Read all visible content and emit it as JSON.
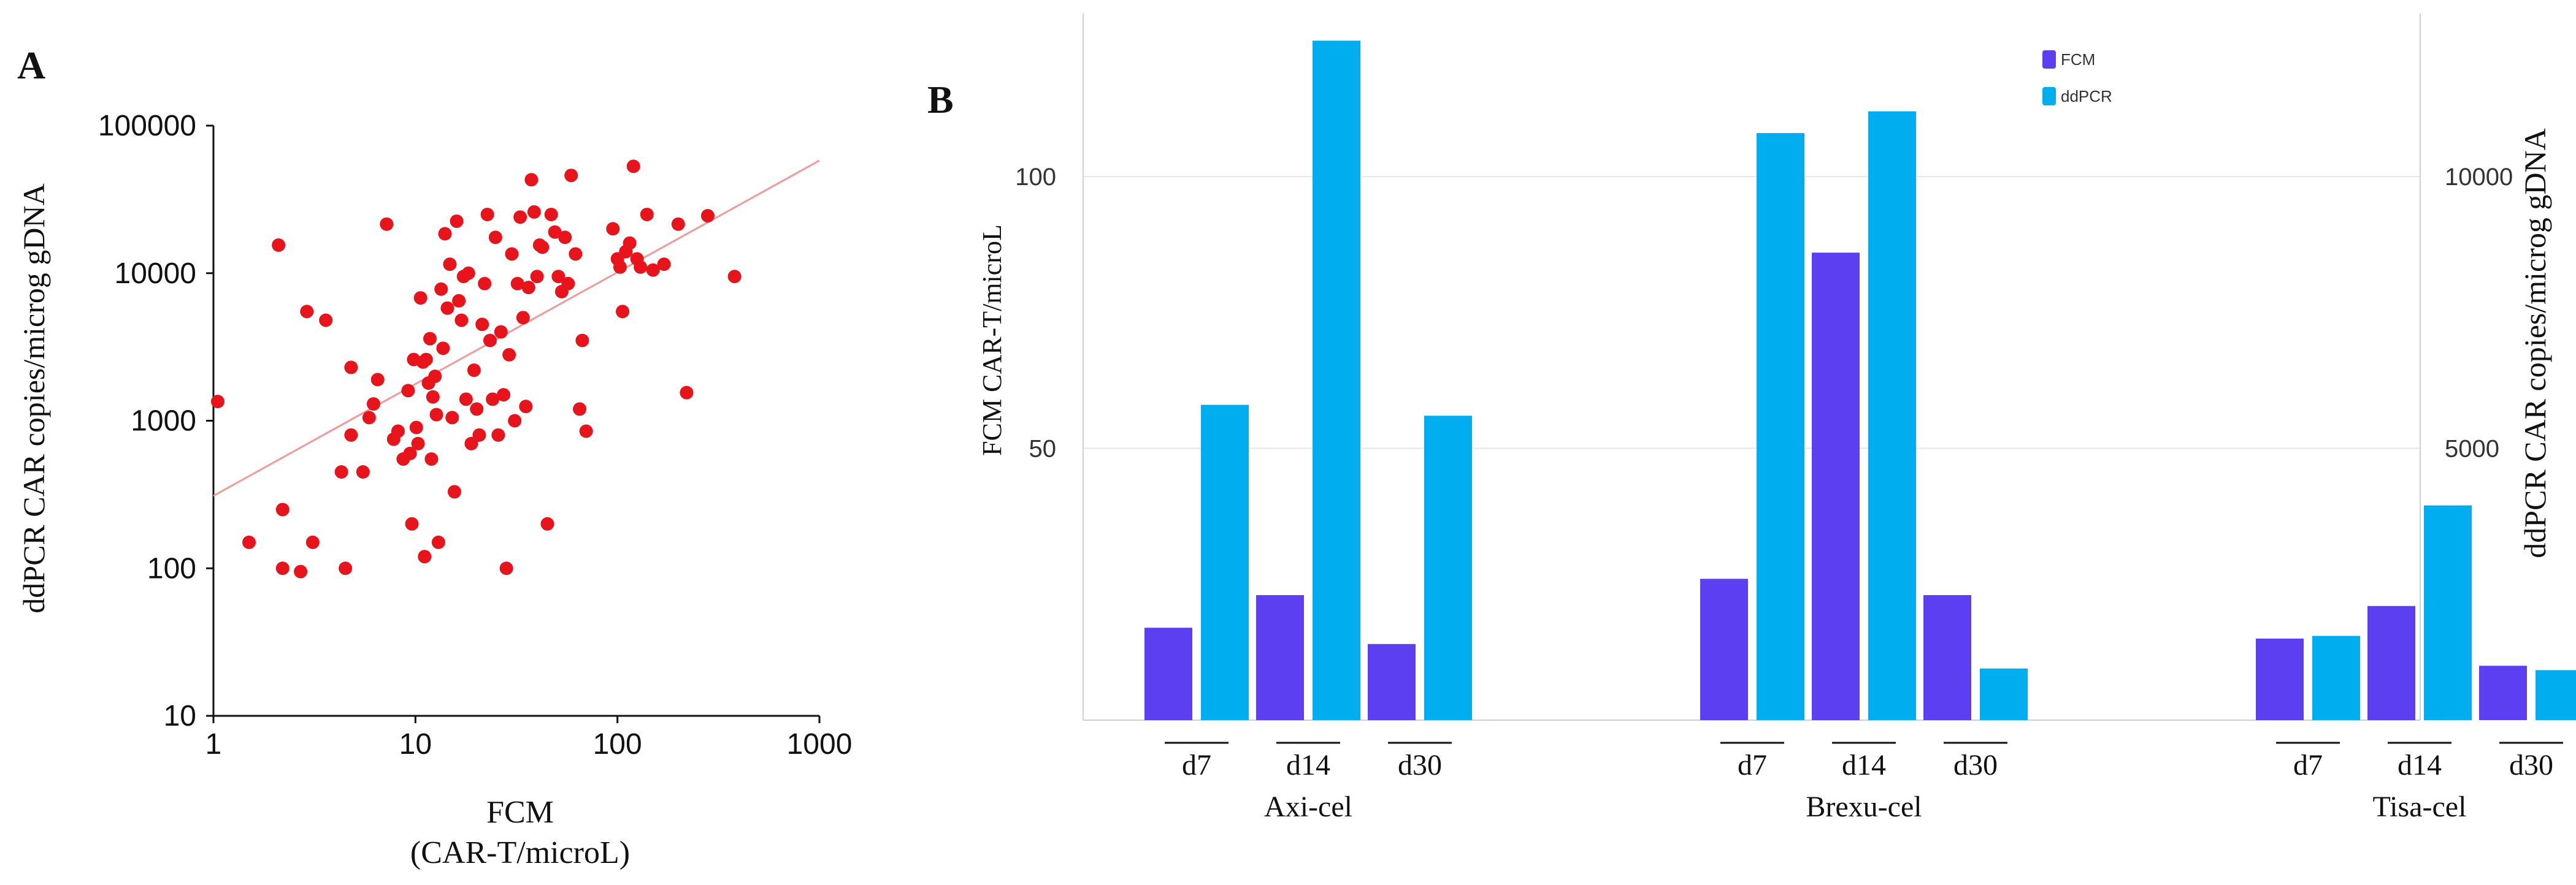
{
  "panel_labels": {
    "a": "A",
    "b": "B"
  },
  "chart_data": [
    {
      "type": "scatter",
      "id": "A",
      "xlabel_lines": [
        "FCM",
        "(CAR-T/microL)"
      ],
      "ylabel": "ddPCR CAR copies/microg gDNA",
      "xscale": "log",
      "yscale": "log",
      "xlim": [
        1,
        1000
      ],
      "ylim": [
        10,
        100000
      ],
      "xticks": [
        1,
        10,
        100,
        1000
      ],
      "yticks": [
        10,
        100,
        1000,
        10000,
        100000
      ],
      "xtick_labels": [
        "1",
        "10",
        "100",
        "1000"
      ],
      "ytick_labels": [
        "10",
        "100",
        "1000",
        "10000",
        "100000"
      ],
      "trendline": {
        "x1": 1,
        "y1": 310,
        "x2": 1000,
        "y2": 58000
      },
      "points": [
        [
          1.05,
          1350
        ],
        [
          1.5,
          150
        ],
        [
          2.1,
          15500
        ],
        [
          2.2,
          250
        ],
        [
          2.2,
          100
        ],
        [
          2.7,
          95
        ],
        [
          2.9,
          5500
        ],
        [
          3.1,
          150
        ],
        [
          3.6,
          4800
        ],
        [
          4.3,
          450
        ],
        [
          4.5,
          100
        ],
        [
          4.8,
          2300
        ],
        [
          4.8,
          800
        ],
        [
          5.5,
          450
        ],
        [
          5.9,
          1050
        ],
        [
          6.2,
          1300
        ],
        [
          6.5,
          1900
        ],
        [
          7.2,
          21500
        ],
        [
          7.8,
          750
        ],
        [
          8.2,
          850
        ],
        [
          8.7,
          550
        ],
        [
          9.2,
          1600
        ],
        [
          9.4,
          600
        ],
        [
          9.6,
          200
        ],
        [
          9.8,
          2600
        ],
        [
          10.1,
          900
        ],
        [
          10.3,
          700
        ],
        [
          10.6,
          6800
        ],
        [
          10.9,
          2500
        ],
        [
          11.1,
          120
        ],
        [
          11.3,
          2600
        ],
        [
          11.6,
          1800
        ],
        [
          11.8,
          3600
        ],
        [
          12.0,
          550
        ],
        [
          12.2,
          1450
        ],
        [
          12.5,
          2000
        ],
        [
          12.7,
          1100
        ],
        [
          13.0,
          150
        ],
        [
          13.4,
          7800
        ],
        [
          13.7,
          3100
        ],
        [
          14.0,
          18500
        ],
        [
          14.4,
          5800
        ],
        [
          14.8,
          11500
        ],
        [
          15.2,
          1050
        ],
        [
          15.6,
          330
        ],
        [
          16.0,
          22500
        ],
        [
          16.4,
          6500
        ],
        [
          16.9,
          4800
        ],
        [
          17.3,
          9500
        ],
        [
          17.8,
          1400
        ],
        [
          18.3,
          10000
        ],
        [
          18.9,
          700
        ],
        [
          19.5,
          2200
        ],
        [
          20.1,
          1200
        ],
        [
          20.7,
          800
        ],
        [
          21.4,
          4500
        ],
        [
          22.0,
          8500
        ],
        [
          22.7,
          25000
        ],
        [
          23.4,
          3500
        ],
        [
          24.1,
          1400
        ],
        [
          24.9,
          17500
        ],
        [
          25.7,
          800
        ],
        [
          26.5,
          4000
        ],
        [
          27.3,
          1500
        ],
        [
          28.2,
          100
        ],
        [
          29.1,
          2800
        ],
        [
          30.0,
          13500
        ],
        [
          31.0,
          1000
        ],
        [
          32.0,
          8500
        ],
        [
          33.0,
          24000
        ],
        [
          34.1,
          5000
        ],
        [
          35.2,
          1250
        ],
        [
          36.3,
          8000
        ],
        [
          37.5,
          43000
        ],
        [
          38.7,
          26000
        ],
        [
          40.0,
          9500
        ],
        [
          41.2,
          15500
        ],
        [
          42.5,
          15000
        ],
        [
          45.0,
          200
        ],
        [
          47.0,
          25000
        ],
        [
          49.0,
          19000
        ],
        [
          51.0,
          9500
        ],
        [
          53.0,
          7500
        ],
        [
          55.0,
          17500
        ],
        [
          57.0,
          8500
        ],
        [
          59.0,
          46000
        ],
        [
          62.0,
          13500
        ],
        [
          65.0,
          1200
        ],
        [
          67.0,
          3500
        ],
        [
          70.0,
          850
        ],
        [
          95.0,
          20000
        ],
        [
          100.0,
          12500
        ],
        [
          103.0,
          11000
        ],
        [
          106.0,
          5500
        ],
        [
          110.0,
          14000
        ],
        [
          115.0,
          16000
        ],
        [
          120.0,
          53000
        ],
        [
          125.0,
          12500
        ],
        [
          130.0,
          11000
        ],
        [
          140.0,
          25000
        ],
        [
          150.0,
          10500
        ],
        [
          170.0,
          11500
        ],
        [
          200.0,
          21500
        ],
        [
          220.0,
          1550
        ],
        [
          280.0,
          24500
        ],
        [
          380.0,
          9500
        ]
      ]
    },
    {
      "type": "bar",
      "id": "B",
      "ylabel_left": "FCM CAR-T/microL",
      "ylabel_right": "ddPCR CAR copies/microg gDNA",
      "ylim_left": [
        0,
        130
      ],
      "ylim_right": [
        0,
        13000
      ],
      "yticks_left": [
        50,
        100
      ],
      "yticks_right": [
        5000,
        10000
      ],
      "ytick_labels_left": [
        "50",
        "100"
      ],
      "ytick_labels_right": [
        "5000",
        "10000"
      ],
      "series": [
        {
          "name": "FCM",
          "axis": "left",
          "color": "#5b3ff0",
          "values": [
            17,
            23,
            14,
            26,
            86,
            23,
            15,
            21,
            10
          ]
        },
        {
          "name": "ddPCR",
          "axis": "right",
          "color": "#00aeef",
          "values": [
            5800,
            12500,
            5600,
            10800,
            11200,
            950,
            1550,
            3950,
            920
          ]
        }
      ],
      "groups": [
        {
          "name": "Axi-cel",
          "timepoints": [
            "d7",
            "d14",
            "d30"
          ]
        },
        {
          "name": "Brexu-cel",
          "timepoints": [
            "d7",
            "d14",
            "d30"
          ]
        },
        {
          "name": "Tisa-cel",
          "timepoints": [
            "d7",
            "d14",
            "d30"
          ]
        }
      ],
      "legend_position": "top-right"
    }
  ]
}
